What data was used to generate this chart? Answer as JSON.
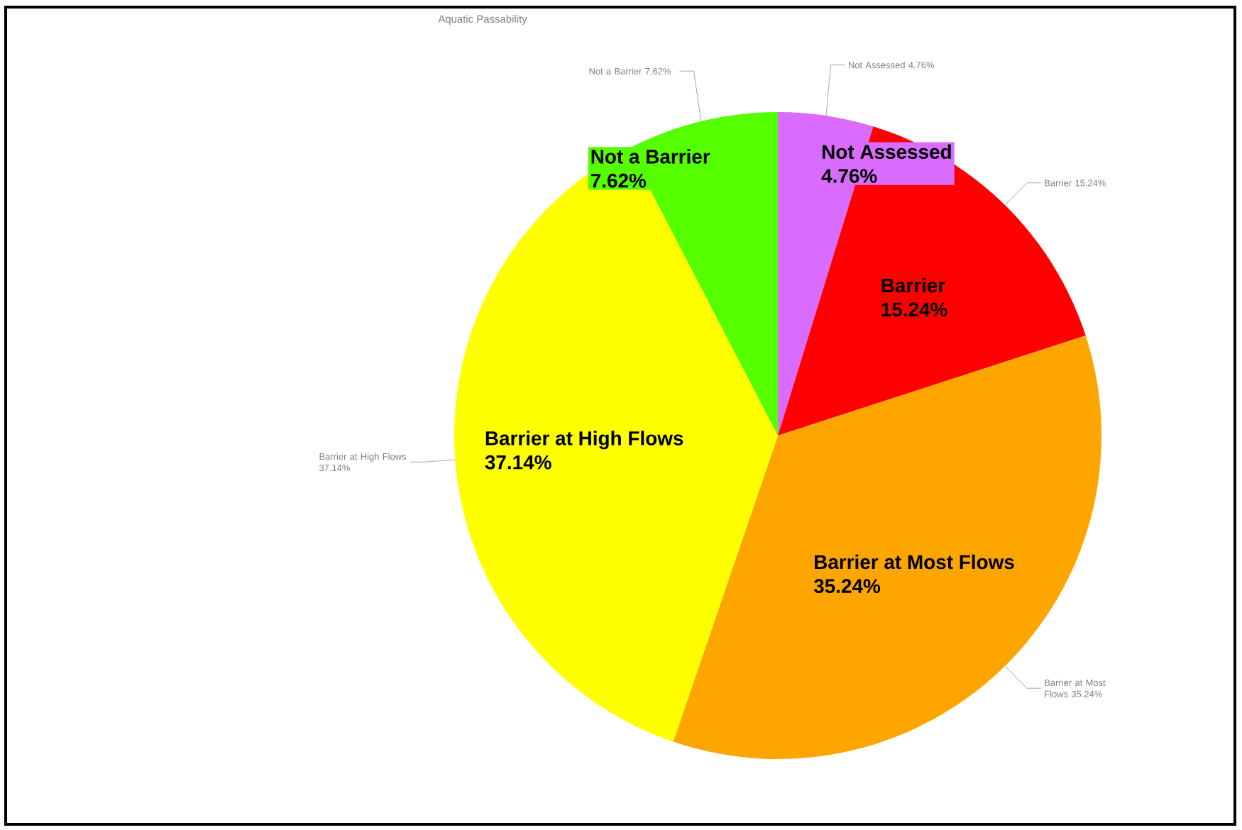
{
  "chart_data": {
    "type": "pie",
    "title": "Aquatic Passability",
    "categories": [
      "Not Assessed",
      "Barrier",
      "Barrier at Most Flows",
      "Barrier at High Flows",
      "Not a Barrier"
    ],
    "values": [
      4.76,
      15.24,
      35.24,
      37.14,
      7.62
    ],
    "value_labels": [
      "4.76%",
      "15.24%",
      "35.24%",
      "37.14%",
      "7.62%"
    ],
    "colors": [
      "#d96cff",
      "#ff0000",
      "#ffa500",
      "#ffff00",
      "#55ff00"
    ]
  }
}
